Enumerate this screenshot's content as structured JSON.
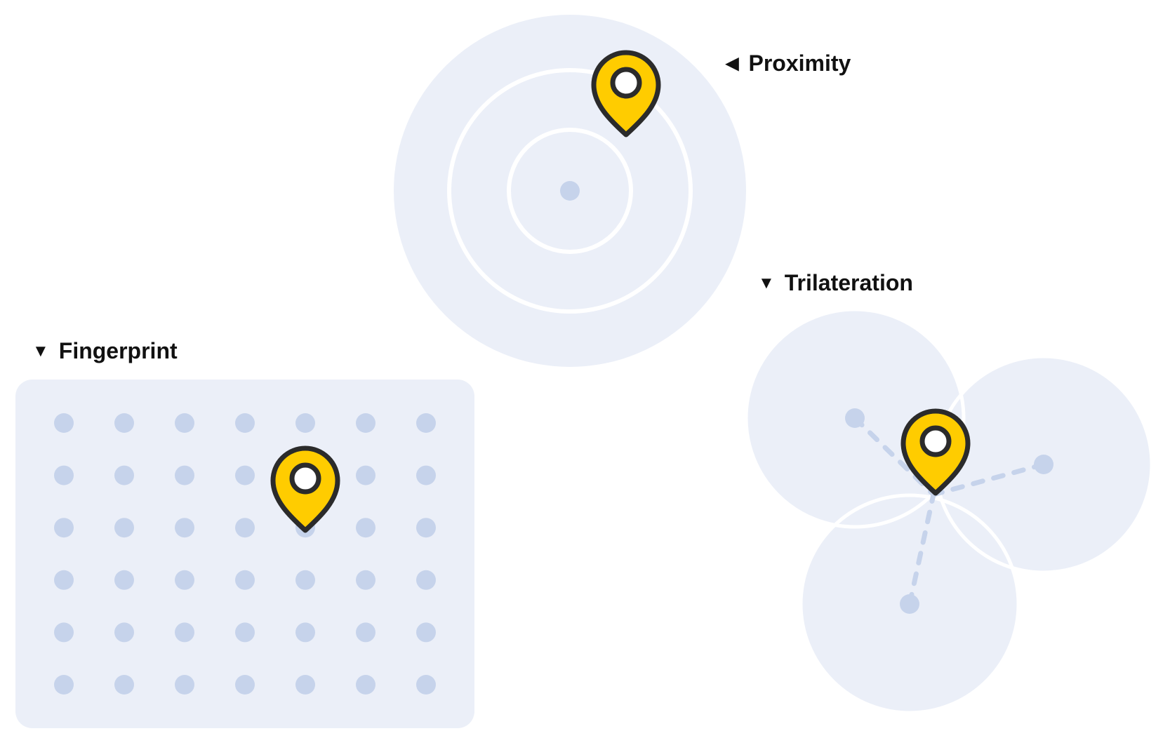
{
  "diagram": {
    "proximity": {
      "label": "Proximity",
      "arrow": "◀",
      "arrow_icon": "triangle-left-icon"
    },
    "trilateration": {
      "label": "Trilateration",
      "arrow": "▼",
      "arrow_icon": "triangle-down-icon"
    },
    "fingerprint": {
      "label": "Fingerprint",
      "arrow": "▼",
      "arrow_icon": "triangle-down-icon",
      "grid_rows": 6,
      "grid_cols": 7
    },
    "marker_icon": "location-pin-icon"
  },
  "colors": {
    "zone_fill": "#ebeff8",
    "beacon_dot": "#c6d3eb",
    "ring_stroke": "#ffffff",
    "pin_fill": "#ffcc00",
    "pin_outline": "#2b2b2b",
    "label_text": "#111111"
  }
}
